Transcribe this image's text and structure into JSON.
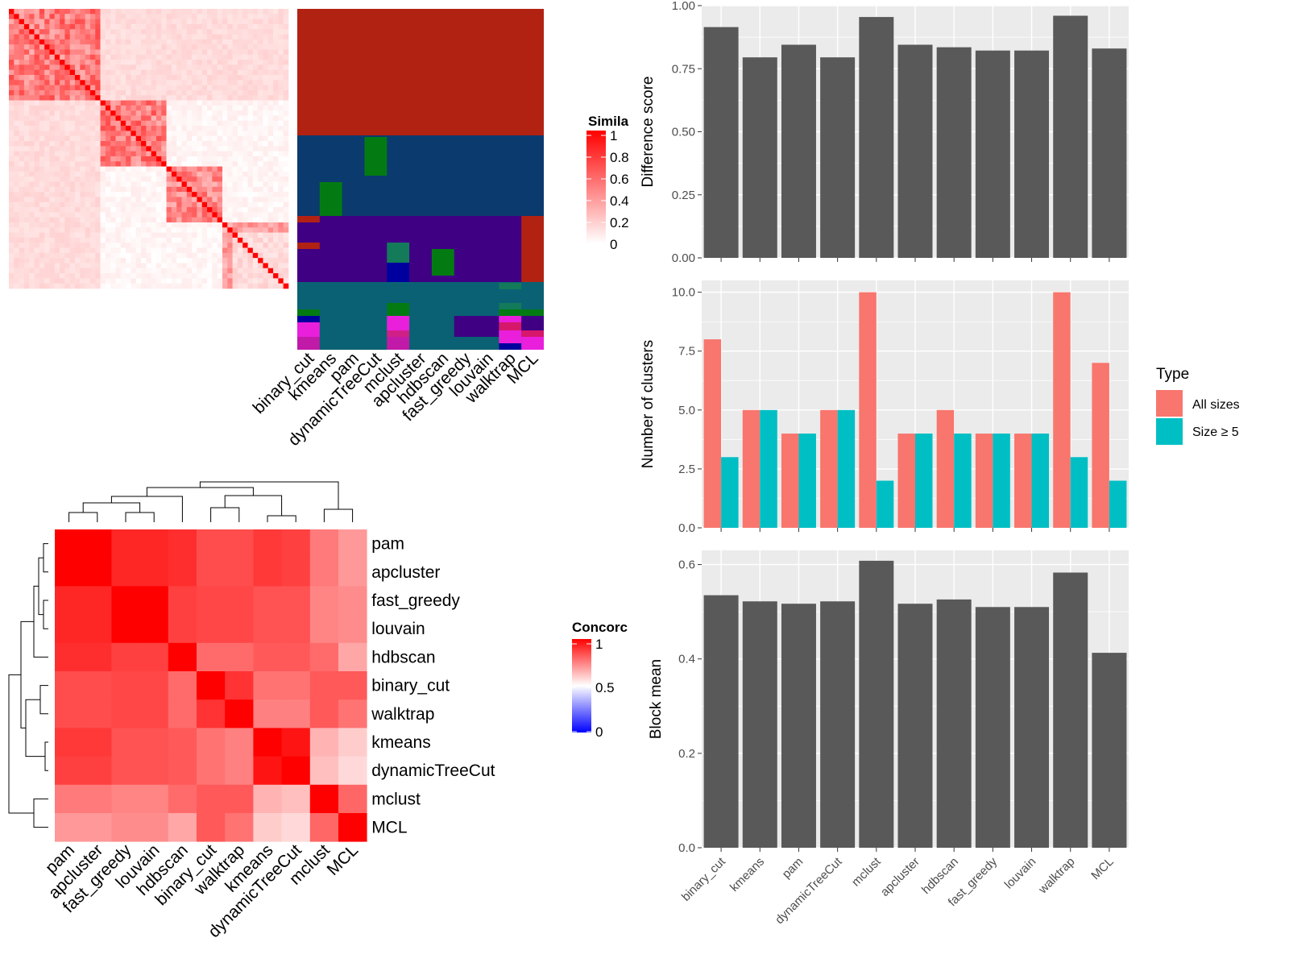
{
  "colors": {
    "panel_bg": "#ebebeb",
    "grid": "#ffffff",
    "bar": "#595959",
    "all_sizes": "#f8766d",
    "size_ge5": "#00bfc4",
    "heat_high": "#ff0000",
    "heat_low": "#ffffff",
    "heat_neg": "#0000ff",
    "cluster_palette": [
      "#b22213",
      "#0b3a6e",
      "#3f0083",
      "#0a6173",
      "#037b12",
      "#ea1fdc",
      "#00009e",
      "#137a5a"
    ]
  },
  "similarity_panel": {
    "legend_title": "Simila",
    "legend_ticks": [
      "1",
      "0.8",
      "0.6",
      "0.4",
      "0.2",
      "0"
    ],
    "methods": [
      "binary_cut",
      "kmeans",
      "pam",
      "dynamicTreeCut",
      "mclust",
      "apcluster",
      "hdbscan",
      "fast_greedy",
      "louvain",
      "walktrap",
      "MCL"
    ]
  },
  "concordance_panel": {
    "legend_title": "Concorc",
    "legend_ticks": [
      "1",
      "0.5",
      "0"
    ],
    "methods": [
      "pam",
      "apcluster",
      "fast_greedy",
      "louvain",
      "hdbscan",
      "binary_cut",
      "walktrap",
      "kmeans",
      "dynamicTreeCut",
      "mclust",
      "MCL"
    ]
  },
  "chart_data": [
    {
      "type": "bar",
      "categories": [
        "binary_cut",
        "kmeans",
        "pam",
        "dynamicTreeCut",
        "mclust",
        "apcluster",
        "hdbscan",
        "fast_greedy",
        "louvain",
        "walktrap",
        "MCL"
      ],
      "values": [
        0.915,
        0.795,
        0.845,
        0.795,
        0.955,
        0.845,
        0.835,
        0.822,
        0.822,
        0.96,
        0.83
      ],
      "ylabel": "Difference score",
      "ylim": [
        0,
        1.0
      ],
      "yticks": [
        "0.00",
        "0.25",
        "0.50",
        "0.75",
        "1.00"
      ],
      "grid": true
    },
    {
      "type": "bar",
      "categories": [
        "binary_cut",
        "kmeans",
        "pam",
        "dynamicTreeCut",
        "mclust",
        "apcluster",
        "hdbscan",
        "fast_greedy",
        "louvain",
        "walktrap",
        "MCL"
      ],
      "series": [
        {
          "name": "All sizes",
          "values": [
            8,
            5,
            4,
            5,
            10,
            4,
            5,
            4,
            4,
            10,
            7
          ]
        },
        {
          "name": "Size ≥ 5",
          "values": [
            3,
            5,
            4,
            5,
            2,
            4,
            4,
            4,
            4,
            3,
            2
          ]
        }
      ],
      "ylabel": "Number of clusters",
      "ylim": [
        0,
        10.5
      ],
      "yticks": [
        "0.0",
        "2.5",
        "5.0",
        "7.5",
        "10.0"
      ],
      "legend_title": "Type",
      "legend": "right",
      "grid": true
    },
    {
      "type": "bar",
      "categories": [
        "binary_cut",
        "kmeans",
        "pam",
        "dynamicTreeCut",
        "mclust",
        "apcluster",
        "hdbscan",
        "fast_greedy",
        "louvain",
        "walktrap",
        "MCL"
      ],
      "values": [
        0.535,
        0.522,
        0.517,
        0.522,
        0.608,
        0.517,
        0.526,
        0.51,
        0.51,
        0.583,
        0.413
      ],
      "ylabel": "Block mean",
      "ylim": [
        0,
        0.63
      ],
      "yticks": [
        "0.0",
        "0.2",
        "0.4",
        "0.6"
      ],
      "grid": true
    },
    {
      "type": "heatmap",
      "rows": [
        "pam",
        "apcluster",
        "fast_greedy",
        "louvain",
        "hdbscan",
        "binary_cut",
        "walktrap",
        "kmeans",
        "dynamicTreeCut",
        "mclust",
        "MCL"
      ],
      "columns": [
        "pam",
        "apcluster",
        "fast_greedy",
        "louvain",
        "hdbscan",
        "binary_cut",
        "walktrap",
        "kmeans",
        "dynamicTreeCut",
        "mclust",
        "MCL"
      ],
      "values": [
        [
          1,
          1,
          0.85,
          0.85,
          0.82,
          0.7,
          0.7,
          0.78,
          0.75,
          0.52,
          0.4
        ],
        [
          1,
          1,
          0.85,
          0.85,
          0.82,
          0.7,
          0.7,
          0.78,
          0.75,
          0.52,
          0.4
        ],
        [
          0.85,
          0.85,
          1,
          1,
          0.75,
          0.72,
          0.72,
          0.68,
          0.68,
          0.48,
          0.45
        ],
        [
          0.85,
          0.85,
          1,
          1,
          0.75,
          0.72,
          0.72,
          0.68,
          0.68,
          0.48,
          0.45
        ],
        [
          0.82,
          0.82,
          0.75,
          0.75,
          1,
          0.58,
          0.58,
          0.65,
          0.65,
          0.58,
          0.35
        ],
        [
          0.7,
          0.7,
          0.72,
          0.72,
          0.58,
          1,
          0.8,
          0.55,
          0.55,
          0.65,
          0.65
        ],
        [
          0.7,
          0.7,
          0.72,
          0.72,
          0.58,
          0.8,
          1,
          0.5,
          0.5,
          0.65,
          0.55
        ],
        [
          0.78,
          0.78,
          0.68,
          0.68,
          0.65,
          0.55,
          0.5,
          1,
          0.92,
          0.3,
          0.2
        ],
        [
          0.75,
          0.75,
          0.68,
          0.68,
          0.65,
          0.55,
          0.5,
          0.92,
          1,
          0.25,
          0.15
        ],
        [
          0.52,
          0.52,
          0.48,
          0.48,
          0.58,
          0.65,
          0.65,
          0.3,
          0.25,
          1,
          0.6
        ],
        [
          0.4,
          0.4,
          0.45,
          0.45,
          0.35,
          0.65,
          0.55,
          0.2,
          0.15,
          0.6,
          1
        ]
      ],
      "legend_title": "Concorc",
      "range": [
        0,
        1
      ]
    },
    {
      "type": "heatmap",
      "rows_label": "genes",
      "columns": [
        "binary_cut",
        "kmeans",
        "pam",
        "dynamicTreeCut",
        "mclust",
        "apcluster",
        "hdbscan",
        "fast_greedy",
        "louvain",
        "walktrap",
        "MCL"
      ],
      "blocks": [
        {
          "from": 0,
          "to": 18,
          "value": 0.55
        },
        {
          "from": 18,
          "to": 31,
          "value": 0.55
        },
        {
          "from": 31,
          "to": 42,
          "value": 0.5
        },
        {
          "from": 42,
          "to": 55,
          "value": 0.4
        }
      ],
      "legend_title": "Simila",
      "range": [
        0,
        1
      ]
    }
  ]
}
